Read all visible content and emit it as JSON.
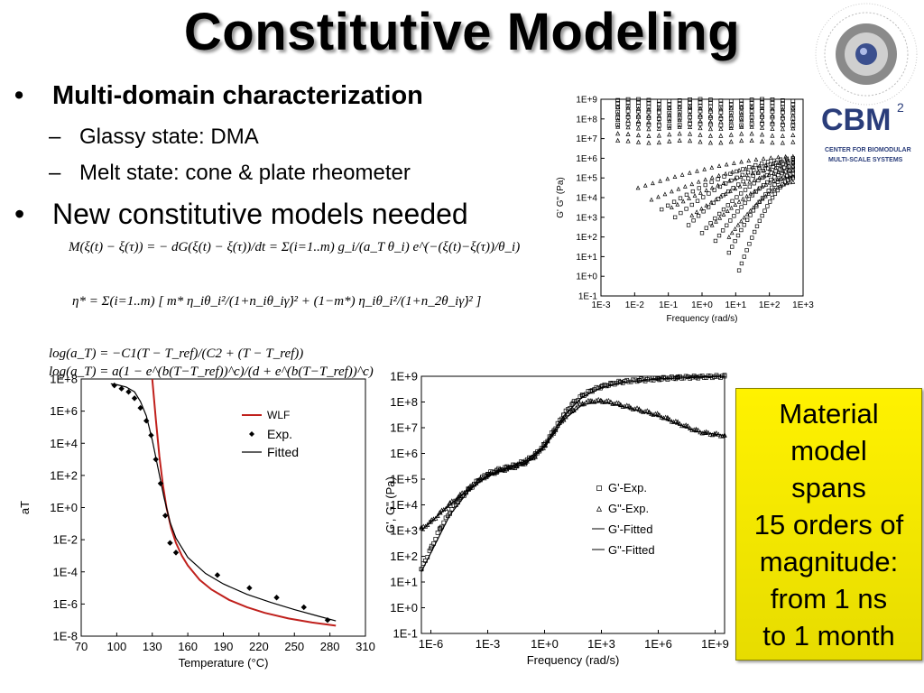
{
  "slide": {
    "title": "Constitutive Modeling",
    "bullets": {
      "b1": "Multi-domain characterization",
      "b1_sub1": "Glassy state: DMA",
      "b1_sub2": "Melt state: cone & plate rheometer",
      "b2": "New constitutive models needed",
      "bullet_glyph": "•",
      "dash_glyph": "–"
    },
    "equations": {
      "eq1": "M(ξ(t) − ξ(τ)) = − dG(ξ(t) − ξ(τ))/dt = Σ(i=1..m) g_i/(a_T θ_i) e^(−(ξ(t)−ξ(τ))/θ_i)",
      "eq2": "η* = Σ(i=1..m) [ m* η_iθ_i²/(1+n_iθ_iγ̇)² + (1−m*) η_iθ_i²/(1+n_2θ_iγ̇)² ]",
      "eq3": "log(a_T) = −C1(T − T_ref)/(C2 + (T − T_ref))",
      "eq4": "log(a_T) = a(1 − e^(b(T−T_ref))^c)/(d + e^(b(T−T_ref))^c)"
    },
    "logo": {
      "text": "CBM",
      "superscript": "2",
      "subtitle_line1": "CENTER FOR BIOMODULAR",
      "subtitle_line2": "MULTI-SCALE SYSTEMS",
      "icon": "gear-logo-icon"
    },
    "callout": {
      "text": "Material\nmodel\nspans\n15 orders of\nmagnitude:\nfrom 1 ns\nto 1 month",
      "color": "#fff200"
    }
  },
  "chart_data": [
    {
      "type": "scatter",
      "title": "",
      "xlabel": "Frequency (rad/s)",
      "ylabel": "G' G\" (Pa)",
      "log_x": true,
      "log_y": true,
      "xlim": [
        -3,
        3
      ],
      "ylim": [
        -1,
        9
      ],
      "xtick_labels": [
        "1E-3",
        "1E-2",
        "1E-1",
        "1E+0",
        "1E+1",
        "1E+2",
        "1E+3"
      ],
      "ytick_labels": [
        "1E-1",
        "1E+0",
        "1E+1",
        "1E+2",
        "1E+3",
        "1E+4",
        "1E+5",
        "1E+6",
        "1E+7",
        "1E+8",
        "1E+9"
      ],
      "grid": false,
      "legend": "none",
      "glassy_x_range_log": [
        -2.5,
        2.7
      ],
      "glassy_G_prime_levels_log": [
        8.95,
        8.8,
        8.6,
        8.35,
        8.05,
        7.7
      ],
      "glassy_G_double_prime_levels_log": [
        8.55,
        8.2,
        7.9,
        7.55,
        7.2,
        6.85
      ],
      "melt_curves": [
        {
          "x0": -1.9,
          "x1": 2.7,
          "y0": 4.5,
          "y1": 6.1,
          "marker": "triangle"
        },
        {
          "x0": -1.2,
          "x1": 2.7,
          "y0": 3.4,
          "y1": 6.0,
          "marker": "square"
        },
        {
          "x0": -0.8,
          "x1": 2.7,
          "y0": 3.0,
          "y1": 5.9,
          "marker": "square"
        },
        {
          "x0": -0.4,
          "x1": 2.7,
          "y0": 2.6,
          "y1": 5.8,
          "marker": "square"
        },
        {
          "x0": 0.0,
          "x1": 2.7,
          "y0": 2.2,
          "y1": 5.6,
          "marker": "square"
        },
        {
          "x0": 0.4,
          "x1": 2.7,
          "y0": 1.8,
          "y1": 5.4,
          "marker": "square"
        },
        {
          "x0": 0.8,
          "x1": 2.7,
          "y0": 1.2,
          "y1": 5.2,
          "marker": "square"
        },
        {
          "x0": 1.1,
          "x1": 2.7,
          "y0": 0.3,
          "y1": 5.0,
          "marker": "square"
        },
        {
          "x0": -1.5,
          "x1": 2.7,
          "y0": 3.9,
          "y1": 5.8,
          "marker": "triangle"
        },
        {
          "x0": -0.9,
          "x1": 2.7,
          "y0": 3.5,
          "y1": 5.6,
          "marker": "triangle"
        },
        {
          "x0": -0.3,
          "x1": 2.7,
          "y0": 3.1,
          "y1": 5.4,
          "marker": "triangle"
        },
        {
          "x0": 0.3,
          "x1": 2.7,
          "y0": 2.6,
          "y1": 5.1,
          "marker": "triangle"
        },
        {
          "x0": 0.8,
          "x1": 2.7,
          "y0": 2.0,
          "y1": 4.8,
          "marker": "triangle"
        }
      ]
    },
    {
      "type": "line",
      "title": "",
      "xlabel": "Temperature (°C)",
      "ylabel": "aT",
      "log_y": true,
      "xlim": [
        70,
        310
      ],
      "ylim": [
        -8,
        8
      ],
      "xtick_labels": [
        "70",
        "100",
        "130",
        "160",
        "190",
        "220",
        "250",
        "280",
        "310"
      ],
      "ytick_labels": [
        "1E-8",
        "1E-6",
        "1E-4",
        "1E-2",
        "1E+0",
        "1E+2",
        "1E+4",
        "1E+6",
        "1E+8"
      ],
      "legend": "top-right",
      "series": [
        {
          "name": "WLF",
          "color": "#c0201c",
          "x": [
            130,
            133,
            136,
            139,
            142,
            146,
            150,
            155,
            160,
            170,
            180,
            195,
            210,
            225,
            245,
            265,
            285
          ],
          "y": [
            8.0,
            5.5,
            3.2,
            1.4,
            0.0,
            -1.3,
            -2.2,
            -3.0,
            -3.6,
            -4.5,
            -5.1,
            -5.75,
            -6.2,
            -6.55,
            -6.9,
            -7.15,
            -7.35
          ]
        },
        {
          "name": "Exp.",
          "marker": "diamond",
          "x": [
            98,
            104,
            110,
            115,
            120,
            125,
            129,
            133,
            137,
            141,
            145,
            150,
            185,
            212,
            235,
            258,
            278
          ],
          "y": [
            7.6,
            7.4,
            7.2,
            6.8,
            6.2,
            5.4,
            4.5,
            3.0,
            1.5,
            -0.5,
            -2.2,
            -2.8,
            -4.2,
            -5.0,
            -5.6,
            -6.2,
            -7.0
          ]
        },
        {
          "name": "Fitted",
          "color": "#000000",
          "x": [
            95,
            100,
            108,
            115,
            120,
            125,
            130,
            135,
            140,
            145,
            150,
            160,
            175,
            190,
            210,
            230,
            250,
            270,
            285
          ],
          "y": [
            7.7,
            7.65,
            7.5,
            7.2,
            6.6,
            5.7,
            4.2,
            2.4,
            0.6,
            -0.9,
            -1.9,
            -3.1,
            -4.1,
            -4.75,
            -5.4,
            -5.9,
            -6.35,
            -6.75,
            -7.05
          ]
        }
      ]
    },
    {
      "type": "scatter",
      "title": "",
      "xlabel": "Frequency (rad/s)",
      "ylabel": "G', G\" (Pa)",
      "log_x": true,
      "log_y": true,
      "xlim": [
        -6.5,
        9.5
      ],
      "ylim": [
        -1,
        9
      ],
      "xtick_labels": [
        "1E-6",
        "1E-3",
        "1E+0",
        "1E+3",
        "1E+6",
        "1E+9"
      ],
      "ytick_labels": [
        "1E-1",
        "1E+0",
        "1E+1",
        "1E+2",
        "1E+3",
        "1E+4",
        "1E+5",
        "1E+6",
        "1E+7",
        "1E+8",
        "1E+9"
      ],
      "legend": "center-right",
      "series": [
        {
          "name": "G'-Exp.",
          "marker": "square",
          "x": [
            -6.5,
            -6,
            -5.5,
            -5,
            -4.5,
            -4,
            -3.5,
            -3,
            -2.5,
            -2,
            -1.5,
            -1,
            -0.5,
            0,
            0.5,
            1,
            1.5,
            2,
            2.5,
            3,
            3.5,
            4,
            5,
            6,
            7,
            8,
            9.5
          ],
          "y": [
            1.5,
            2.3,
            3.1,
            3.7,
            4.2,
            4.6,
            4.95,
            5.2,
            5.35,
            5.45,
            5.55,
            5.7,
            5.95,
            6.35,
            6.9,
            7.5,
            7.95,
            8.25,
            8.45,
            8.6,
            8.7,
            8.78,
            8.85,
            8.9,
            8.95,
            8.97,
            9.0
          ]
        },
        {
          "name": "G\"-Exp.",
          "marker": "triangle",
          "x": [
            -6.5,
            -6,
            -5.5,
            -5,
            -4.5,
            -4,
            -3.5,
            -3,
            -2.5,
            -2,
            -1.5,
            -1,
            -0.5,
            0,
            0.5,
            1,
            1.5,
            2,
            2.5,
            3,
            3.5,
            4,
            4.5,
            5,
            5.5,
            6,
            6.5,
            7,
            7.5,
            8,
            8.5,
            9,
            9.5
          ],
          "y": [
            3.1,
            3.35,
            3.7,
            4.05,
            4.35,
            4.65,
            4.95,
            5.15,
            5.3,
            5.4,
            5.5,
            5.65,
            5.9,
            6.3,
            6.85,
            7.35,
            7.7,
            7.95,
            8.05,
            8.05,
            8.0,
            7.9,
            7.8,
            7.7,
            7.6,
            7.5,
            7.35,
            7.2,
            7.05,
            6.9,
            6.8,
            6.75,
            6.7
          ]
        },
        {
          "name": "G'-Fitted",
          "color": "#000000",
          "x": [
            -6.5,
            -5,
            -4,
            -3,
            -2,
            -1,
            0,
            1,
            2,
            3,
            4,
            6,
            9.5
          ],
          "y": [
            1.4,
            3.6,
            4.55,
            5.15,
            5.45,
            5.7,
            6.3,
            7.45,
            8.2,
            8.55,
            8.75,
            8.9,
            9.0
          ]
        },
        {
          "name": "G\"-Fitted",
          "color": "#000000",
          "x": [
            -6.5,
            -5,
            -4,
            -3,
            -2,
            -1,
            0,
            1,
            2,
            3,
            4,
            5,
            6,
            7,
            8,
            9.5
          ],
          "y": [
            3.0,
            4.0,
            4.6,
            5.1,
            5.4,
            5.6,
            6.25,
            7.3,
            7.9,
            8.0,
            7.85,
            7.65,
            7.45,
            7.15,
            6.85,
            6.7
          ]
        }
      ]
    }
  ]
}
